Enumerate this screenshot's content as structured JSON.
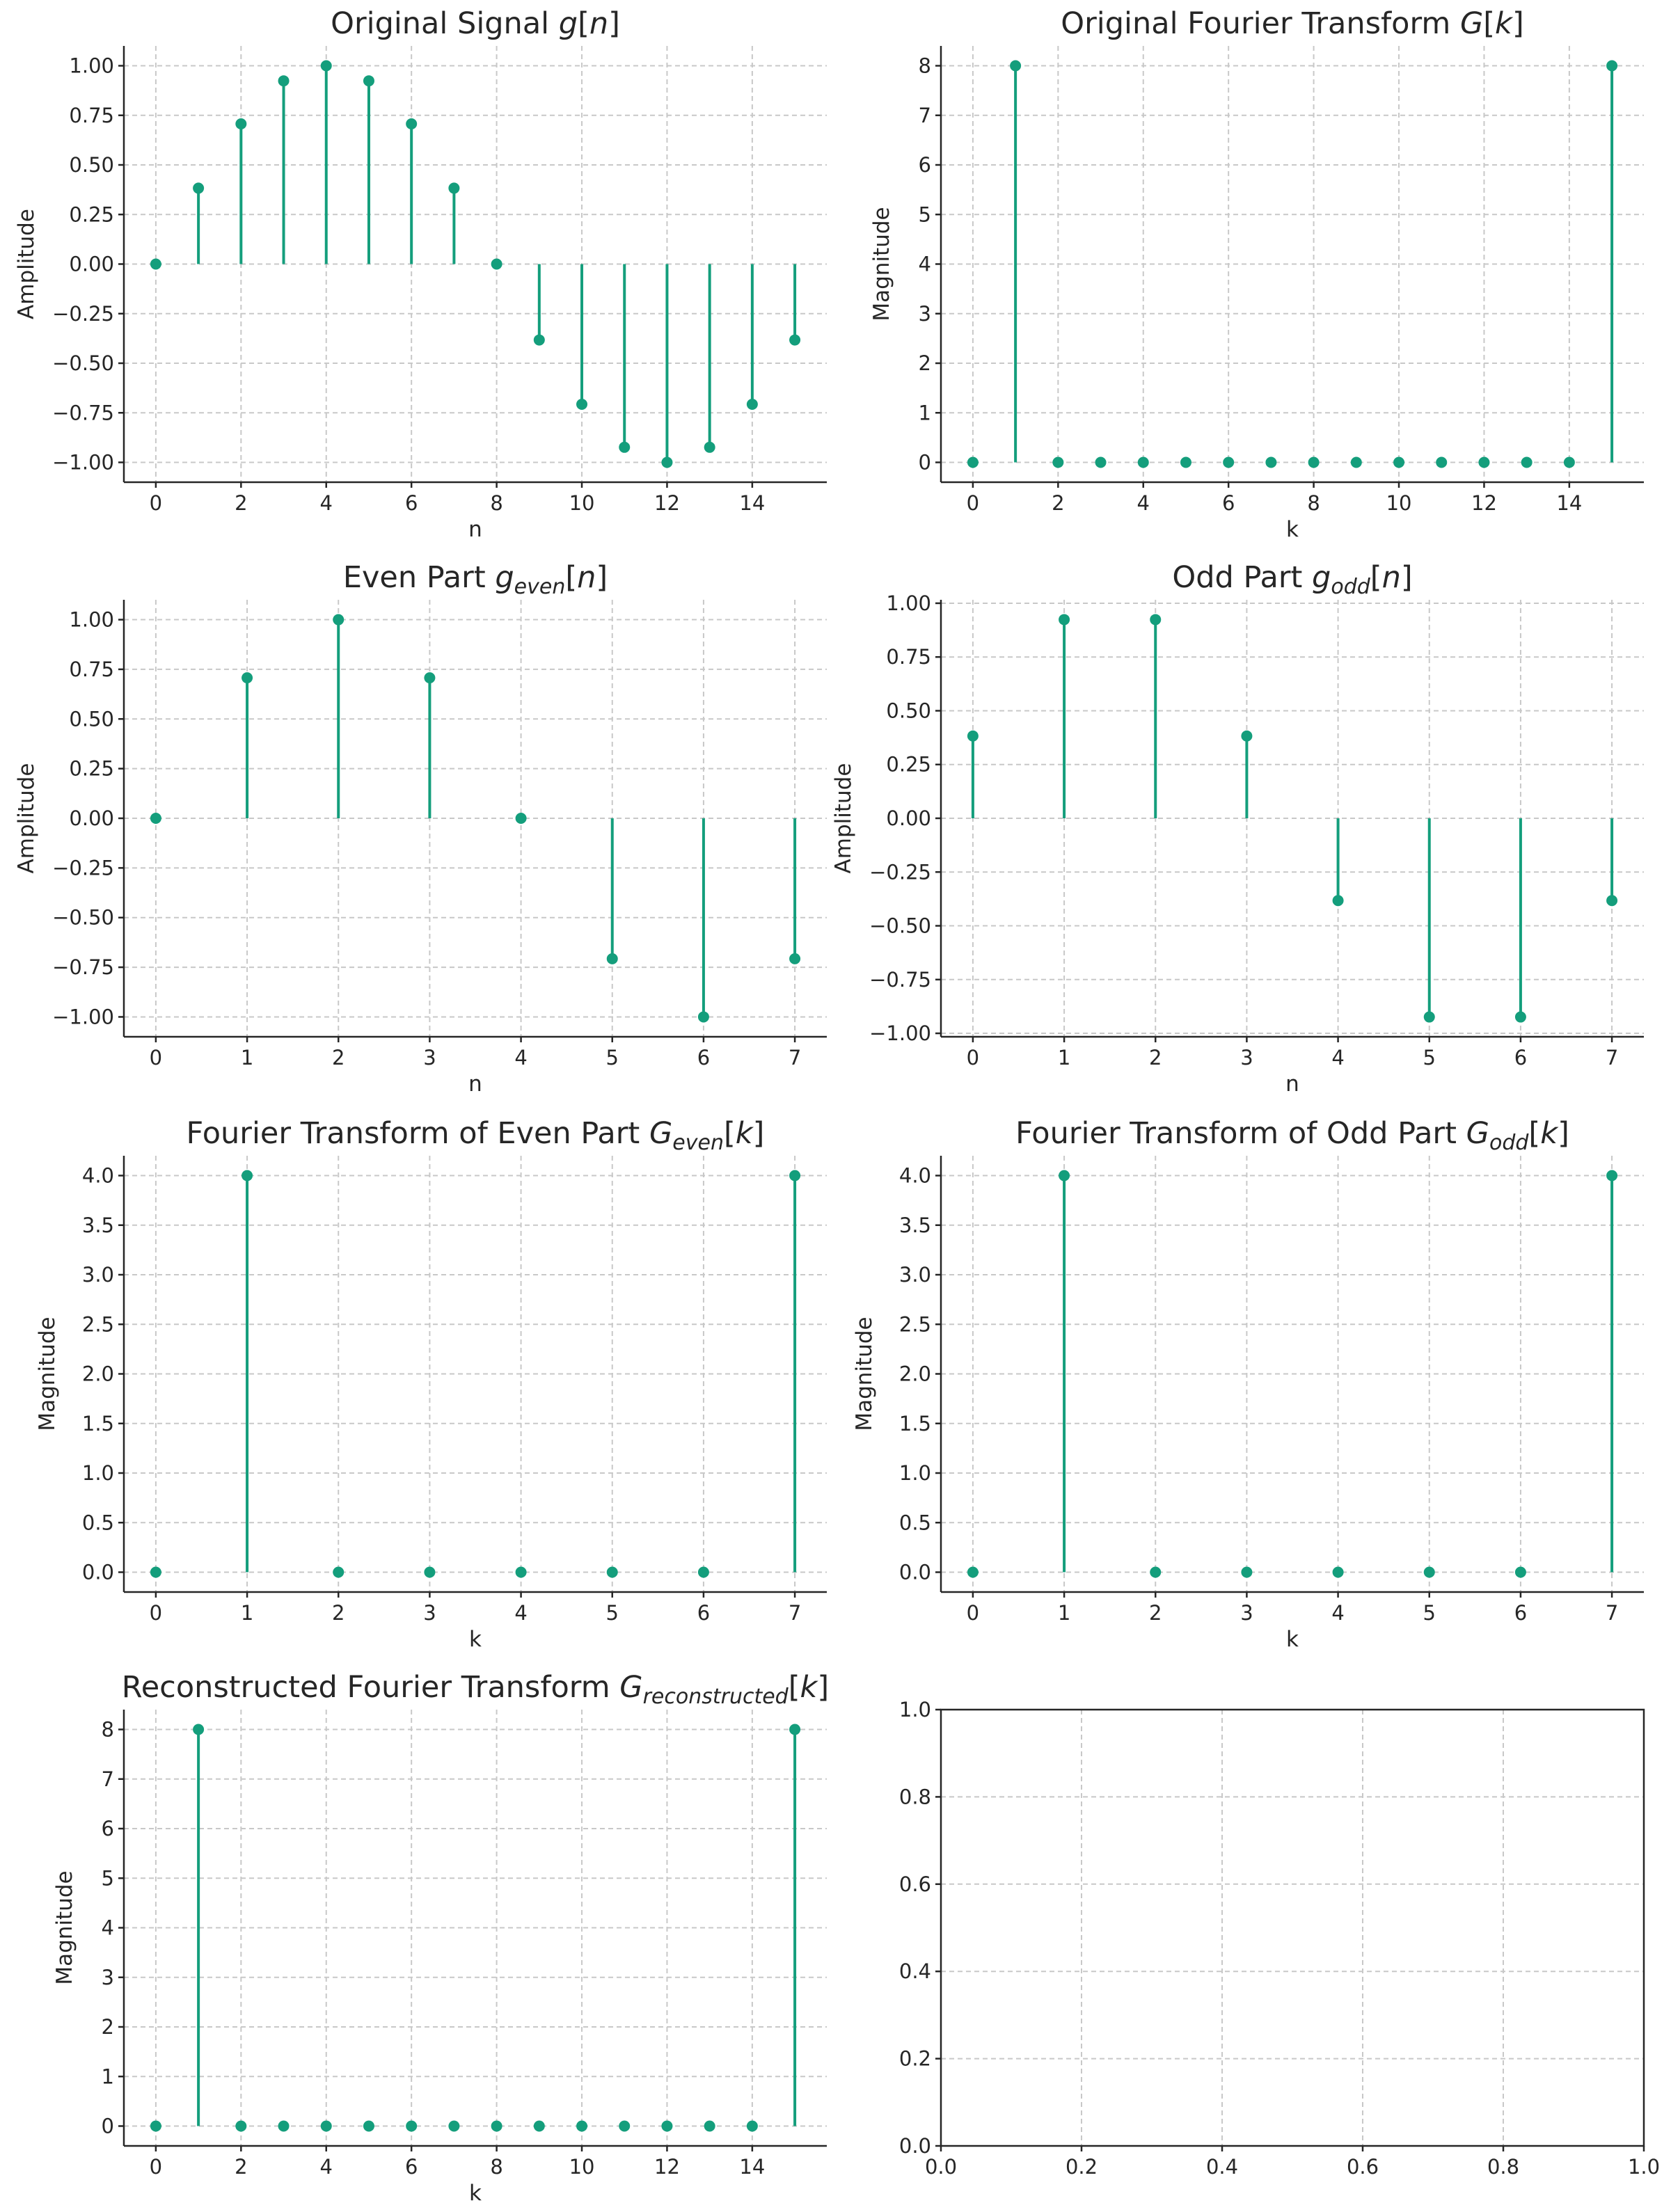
{
  "style": {
    "stem_color": "#149e7c",
    "grid": true
  },
  "chart_data": [
    {
      "type": "stem",
      "title": "Original Signal g[n]",
      "title_parts": [
        {
          "t": "Original Signal "
        },
        {
          "t": "g",
          "it": true
        },
        {
          "t": "["
        },
        {
          "t": "n",
          "it": true
        },
        {
          "t": "]"
        }
      ],
      "xlabel": "n",
      "ylabel": "Amplitude",
      "x": [
        0,
        1,
        2,
        3,
        4,
        5,
        6,
        7,
        8,
        9,
        10,
        11,
        12,
        13,
        14,
        15
      ],
      "y": [
        0,
        0.3827,
        0.7071,
        0.9239,
        1.0,
        0.9239,
        0.7071,
        0.3827,
        0,
        -0.3827,
        -0.7071,
        -0.9239,
        -1.0,
        -0.9239,
        -0.7071,
        -0.3827
      ],
      "xlim": [
        -0.75,
        15.75
      ],
      "ylim": [
        -1.1,
        1.1
      ],
      "xticks": [
        0,
        2,
        4,
        6,
        8,
        10,
        12,
        14
      ],
      "xtick_labels": [
        "0",
        "2",
        "4",
        "6",
        "8",
        "10",
        "12",
        "14"
      ],
      "yticks": [
        -1,
        -0.75,
        -0.5,
        -0.25,
        0,
        0.25,
        0.5,
        0.75,
        1
      ],
      "ytick_labels": [
        "−1.00",
        "−0.75",
        "−0.50",
        "−0.25",
        "0.00",
        "0.25",
        "0.50",
        "0.75",
        "1.00"
      ]
    },
    {
      "type": "stem",
      "title": "Original Fourier Transform G[k]",
      "title_parts": [
        {
          "t": "Original Fourier Transform "
        },
        {
          "t": "G",
          "it": true
        },
        {
          "t": "["
        },
        {
          "t": "k",
          "it": true
        },
        {
          "t": "]"
        }
      ],
      "xlabel": "k",
      "ylabel": "Magnitude",
      "x": [
        0,
        1,
        2,
        3,
        4,
        5,
        6,
        7,
        8,
        9,
        10,
        11,
        12,
        13,
        14,
        15
      ],
      "y": [
        0,
        8,
        0,
        0,
        0,
        0,
        0,
        0,
        0,
        0,
        0,
        0,
        0,
        0,
        0,
        8
      ],
      "xlim": [
        -0.75,
        15.75
      ],
      "ylim": [
        -0.4,
        8.4
      ],
      "xticks": [
        0,
        2,
        4,
        6,
        8,
        10,
        12,
        14
      ],
      "xtick_labels": [
        "0",
        "2",
        "4",
        "6",
        "8",
        "10",
        "12",
        "14"
      ],
      "yticks": [
        0,
        1,
        2,
        3,
        4,
        5,
        6,
        7,
        8
      ],
      "ytick_labels": [
        "0",
        "1",
        "2",
        "3",
        "4",
        "5",
        "6",
        "7",
        "8"
      ]
    },
    {
      "type": "stem",
      "title": "Even Part g_even[n]",
      "title_parts": [
        {
          "t": "Even Part "
        },
        {
          "t": "g",
          "it": true
        },
        {
          "t": "even",
          "it": true,
          "sub": true
        },
        {
          "t": "["
        },
        {
          "t": "n",
          "it": true
        },
        {
          "t": "]"
        }
      ],
      "xlabel": "n",
      "ylabel": "Amplitude",
      "x": [
        0,
        1,
        2,
        3,
        4,
        5,
        6,
        7
      ],
      "y": [
        0,
        0.7071,
        1.0,
        0.7071,
        0,
        -0.7071,
        -1.0,
        -0.7071
      ],
      "xlim": [
        -0.35,
        7.35
      ],
      "ylim": [
        -1.1,
        1.1
      ],
      "xticks": [
        0,
        1,
        2,
        3,
        4,
        5,
        6,
        7
      ],
      "xtick_labels": [
        "0",
        "1",
        "2",
        "3",
        "4",
        "5",
        "6",
        "7"
      ],
      "yticks": [
        -1,
        -0.75,
        -0.5,
        -0.25,
        0,
        0.25,
        0.5,
        0.75,
        1
      ],
      "ytick_labels": [
        "−1.00",
        "−0.75",
        "−0.50",
        "−0.25",
        "0.00",
        "0.25",
        "0.50",
        "0.75",
        "1.00"
      ]
    },
    {
      "type": "stem",
      "title": "Odd Part g_odd[n]",
      "title_parts": [
        {
          "t": "Odd Part "
        },
        {
          "t": "g",
          "it": true
        },
        {
          "t": "odd",
          "it": true,
          "sub": true
        },
        {
          "t": "["
        },
        {
          "t": "n",
          "it": true
        },
        {
          "t": "]"
        }
      ],
      "xlabel": "n",
      "ylabel": "Amplitude",
      "x": [
        0,
        1,
        2,
        3,
        4,
        5,
        6,
        7
      ],
      "y": [
        0.3827,
        0.9239,
        0.9239,
        0.3827,
        -0.3827,
        -0.9239,
        -0.9239,
        -0.3827
      ],
      "xlim": [
        -0.35,
        7.35
      ],
      "ylim": [
        -1.016,
        1.016
      ],
      "xticks": [
        0,
        1,
        2,
        3,
        4,
        5,
        6,
        7
      ],
      "xtick_labels": [
        "0",
        "1",
        "2",
        "3",
        "4",
        "5",
        "6",
        "7"
      ],
      "yticks": [
        -1,
        -0.75,
        -0.5,
        -0.25,
        0,
        0.25,
        0.5,
        0.75,
        1
      ],
      "ytick_labels": [
        "−1.00",
        "−0.75",
        "−0.50",
        "−0.25",
        "0.00",
        "0.25",
        "0.50",
        "0.75",
        "1.00"
      ]
    },
    {
      "type": "stem",
      "title": "Fourier Transform of Even Part G_even[k]",
      "title_parts": [
        {
          "t": "Fourier Transform of Even Part "
        },
        {
          "t": "G",
          "it": true
        },
        {
          "t": "even",
          "it": true,
          "sub": true
        },
        {
          "t": "["
        },
        {
          "t": "k",
          "it": true
        },
        {
          "t": "]"
        }
      ],
      "xlabel": "k",
      "ylabel": "Magnitude",
      "x": [
        0,
        1,
        2,
        3,
        4,
        5,
        6,
        7
      ],
      "y": [
        0,
        4,
        0,
        0,
        0,
        0,
        0,
        4
      ],
      "xlim": [
        -0.35,
        7.35
      ],
      "ylim": [
        -0.2,
        4.2
      ],
      "xticks": [
        0,
        1,
        2,
        3,
        4,
        5,
        6,
        7
      ],
      "xtick_labels": [
        "0",
        "1",
        "2",
        "3",
        "4",
        "5",
        "6",
        "7"
      ],
      "yticks": [
        0,
        0.5,
        1,
        1.5,
        2,
        2.5,
        3,
        3.5,
        4
      ],
      "ytick_labels": [
        "0.0",
        "0.5",
        "1.0",
        "1.5",
        "2.0",
        "2.5",
        "3.0",
        "3.5",
        "4.0"
      ]
    },
    {
      "type": "stem",
      "title": "Fourier Transform of Odd Part G_odd[k]",
      "title_parts": [
        {
          "t": "Fourier Transform of Odd Part "
        },
        {
          "t": "G",
          "it": true
        },
        {
          "t": "odd",
          "it": true,
          "sub": true
        },
        {
          "t": "["
        },
        {
          "t": "k",
          "it": true
        },
        {
          "t": "]"
        }
      ],
      "xlabel": "k",
      "ylabel": "Magnitude",
      "x": [
        0,
        1,
        2,
        3,
        4,
        5,
        6,
        7
      ],
      "y": [
        0,
        4,
        0,
        0,
        0,
        0,
        0,
        4
      ],
      "xlim": [
        -0.35,
        7.35
      ],
      "ylim": [
        -0.2,
        4.2
      ],
      "xticks": [
        0,
        1,
        2,
        3,
        4,
        5,
        6,
        7
      ],
      "xtick_labels": [
        "0",
        "1",
        "2",
        "3",
        "4",
        "5",
        "6",
        "7"
      ],
      "yticks": [
        0,
        0.5,
        1,
        1.5,
        2,
        2.5,
        3,
        3.5,
        4
      ],
      "ytick_labels": [
        "0.0",
        "0.5",
        "1.0",
        "1.5",
        "2.0",
        "2.5",
        "3.0",
        "3.5",
        "4.0"
      ]
    },
    {
      "type": "stem",
      "title": "Reconstructed Fourier Transform G_reconstructed[k]",
      "title_parts": [
        {
          "t": "Reconstructed Fourier Transform "
        },
        {
          "t": "G",
          "it": true
        },
        {
          "t": "reconstructed",
          "it": true,
          "sub": true
        },
        {
          "t": "["
        },
        {
          "t": "k",
          "it": true
        },
        {
          "t": "]"
        }
      ],
      "xlabel": "k",
      "ylabel": "Magnitude",
      "x": [
        0,
        1,
        2,
        3,
        4,
        5,
        6,
        7,
        8,
        9,
        10,
        11,
        12,
        13,
        14,
        15
      ],
      "y": [
        0,
        8,
        0,
        0,
        0,
        0,
        0,
        0,
        0,
        0,
        0,
        0,
        0,
        0,
        0,
        8
      ],
      "xlim": [
        -0.75,
        15.75
      ],
      "ylim": [
        -0.4,
        8.4
      ],
      "xticks": [
        0,
        2,
        4,
        6,
        8,
        10,
        12,
        14
      ],
      "xtick_labels": [
        "0",
        "2",
        "4",
        "6",
        "8",
        "10",
        "12",
        "14"
      ],
      "yticks": [
        0,
        1,
        2,
        3,
        4,
        5,
        6,
        7,
        8
      ],
      "ytick_labels": [
        "0",
        "1",
        "2",
        "3",
        "4",
        "5",
        "6",
        "7",
        "8"
      ]
    },
    {
      "type": "empty",
      "title": "",
      "title_parts": [],
      "xlabel": "",
      "ylabel": "",
      "x": [],
      "y": [],
      "xlim": [
        0,
        1
      ],
      "ylim": [
        0,
        1
      ],
      "xticks": [
        0,
        0.2,
        0.4,
        0.6,
        0.8,
        1
      ],
      "xtick_labels": [
        "0.0",
        "0.2",
        "0.4",
        "0.6",
        "0.8",
        "1.0"
      ],
      "yticks": [
        0,
        0.2,
        0.4,
        0.6,
        0.8,
        1
      ],
      "ytick_labels": [
        "0.0",
        "0.2",
        "0.4",
        "0.6",
        "0.8",
        "1.0"
      ]
    }
  ]
}
